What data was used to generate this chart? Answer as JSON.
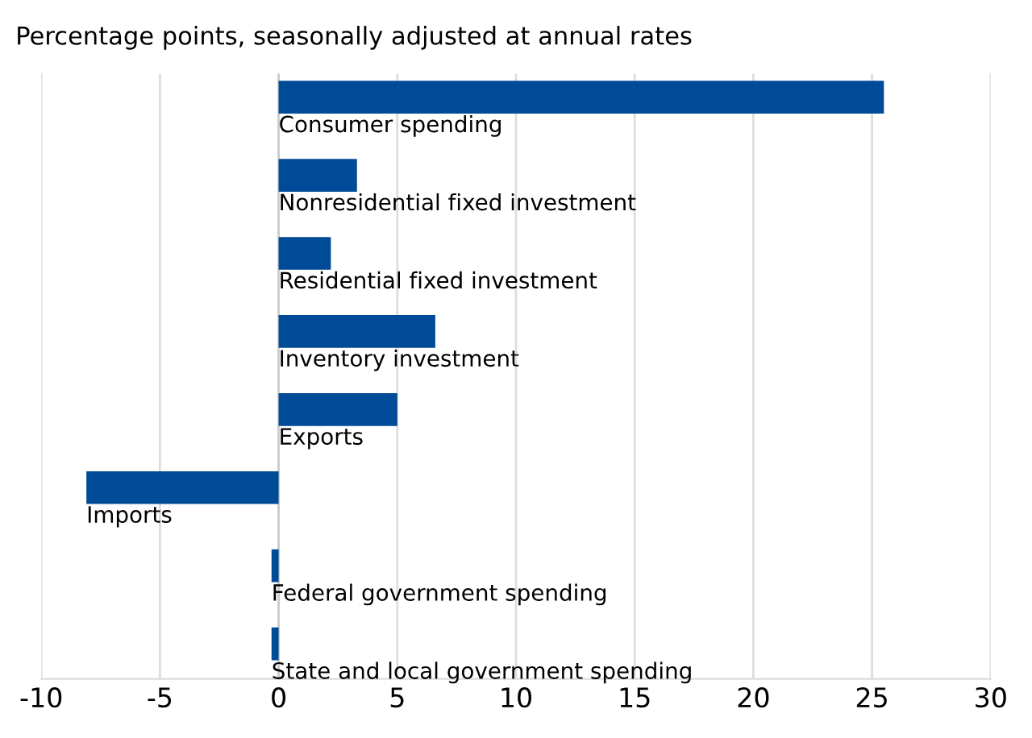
{
  "chart_data": {
    "type": "bar",
    "orientation": "horizontal",
    "title": "Percentage points, seasonally adjusted at annual rates",
    "categories": [
      "Consumer spending",
      "Nonresidential fixed investment",
      "Residential fixed investment",
      "Inventory investment",
      "Exports",
      "Imports",
      "Federal government spending",
      "State and local government spending"
    ],
    "values": [
      25.5,
      3.3,
      2.2,
      6.6,
      5.0,
      -8.1,
      -0.3,
      -0.3
    ],
    "color": "#004b97",
    "xlim": [
      -10,
      30
    ],
    "xticks": [
      -10,
      -5,
      0,
      5,
      10,
      15,
      20,
      25,
      30
    ],
    "grid": "x"
  }
}
